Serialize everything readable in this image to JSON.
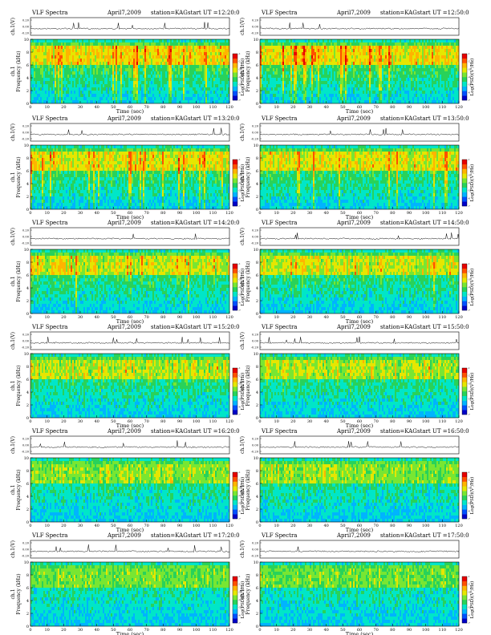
{
  "panels": [
    {
      "id": "p1",
      "heading": "VLF Spectra",
      "date": "April7,2009",
      "station": "station=KAG",
      "start": "start UT =12:20:0"
    },
    {
      "id": "p2",
      "heading": "VLF Spectra",
      "date": "April7,2009",
      "station": "station=KAG",
      "start": "start UT =12:50:0"
    },
    {
      "id": "p3",
      "heading": "VLF Spectra",
      "date": "April7,2009",
      "station": "station=KAG",
      "start": "start UT =13:20:0"
    },
    {
      "id": "p4",
      "heading": "VLF Spectra",
      "date": "April7,2009",
      "station": "station=KAG",
      "start": "start UT =13:50:0"
    },
    {
      "id": "p5",
      "heading": "VLF Spectra",
      "date": "April7,2009",
      "station": "station=KAG",
      "start": "start UT =14:20:0"
    },
    {
      "id": "p6",
      "heading": "VLF Spectra",
      "date": "April7,2009",
      "station": "station=KAG",
      "start": "start UT =14:50:0"
    },
    {
      "id": "p7",
      "heading": "VLF Spectra",
      "date": "April7,2009",
      "station": "station=KAG",
      "start": "start UT =15:20:0"
    },
    {
      "id": "p8",
      "heading": "VLF Spectra",
      "date": "April7,2009",
      "station": "station=KAG",
      "start": "start UT =15:50:0"
    },
    {
      "id": "p9",
      "heading": "VLF Spectra",
      "date": "April7,2009",
      "station": "station=KAG",
      "start": "start UT =16:20:0"
    },
    {
      "id": "p10",
      "heading": "VLF Spectra",
      "date": "April7,2009",
      "station": "station=KAG",
      "start": "start UT =16:50:0"
    },
    {
      "id": "p11",
      "heading": "VLF Spectra",
      "date": "April7,2009",
      "station": "station=KAG",
      "start": "start UT =17:20:0"
    },
    {
      "id": "p12",
      "heading": "VLF Spectra",
      "date": "April7,2009",
      "station": "station=KAG",
      "start": "start UT =17:50:0"
    }
  ],
  "labels": {
    "waveform_ylabel": "ch.1(V)",
    "spec_ylabel_1": "ch.1",
    "spec_ylabel_2": "Frequency (kHz)",
    "xlabel": "Time (sec)",
    "colorbar_label": "Log(PSD)(V²/Hz)"
  },
  "chart_data": {
    "type": "heatmap",
    "panel_count": 12,
    "waveform_yticks": [
      "0.20",
      "0.00",
      "-0.20"
    ],
    "freq_ticks": [
      0,
      2,
      4,
      6,
      8,
      10
    ],
    "freq_range_khz": [
      0,
      10
    ],
    "time_ticks": [
      0,
      10,
      20,
      30,
      40,
      50,
      60,
      70,
      80,
      90,
      100,
      110,
      120
    ],
    "time_range_sec": [
      0,
      120
    ],
    "colorbar_ticks": [
      "-1",
      "-2",
      "-3",
      "-4",
      "-5",
      "-6",
      "-7"
    ],
    "colormap": [
      "#0000c8",
      "#0050ff",
      "#00b4ff",
      "#00e6c8",
      "#28d25a",
      "#78e632",
      "#e6e600",
      "#ffb400",
      "#ff5000",
      "#e60000"
    ]
  }
}
